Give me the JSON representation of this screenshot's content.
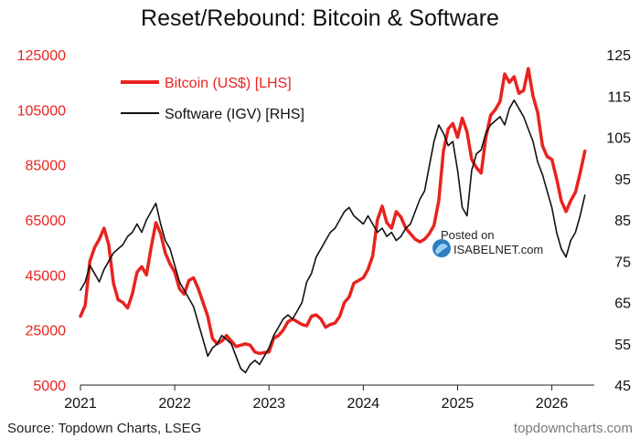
{
  "chart_data": {
    "type": "line",
    "title": "Reset/Rebound: Bitcoin & Software",
    "x_ticks": [
      "2021",
      "2022",
      "2023",
      "2024",
      "2025",
      "2026"
    ],
    "x_range": [
      2021.0,
      2026.45
    ],
    "y_left": {
      "ylim": [
        5000,
        125000
      ],
      "ticks": [
        "5000",
        "25000",
        "45000",
        "65000",
        "85000",
        "105000",
        "125000"
      ]
    },
    "y_right": {
      "ylim": [
        45,
        125
      ],
      "ticks": [
        "45",
        "55",
        "65",
        "75",
        "85",
        "95",
        "105",
        "115",
        "125"
      ]
    },
    "legend_position": "top-left",
    "grid": false,
    "series": [
      {
        "name": "Bitcoin (US$) [LHS]",
        "axis": "left",
        "color": "#e8231f",
        "x": [
          2021.0,
          2021.05,
          2021.1,
          2021.15,
          2021.2,
          2021.25,
          2021.3,
          2021.35,
          2021.4,
          2021.45,
          2021.5,
          2021.55,
          2021.6,
          2021.65,
          2021.7,
          2021.75,
          2021.8,
          2021.85,
          2021.9,
          2021.95,
          2022.0,
          2022.05,
          2022.1,
          2022.15,
          2022.2,
          2022.25,
          2022.3,
          2022.35,
          2022.4,
          2022.45,
          2022.5,
          2022.55,
          2022.6,
          2022.65,
          2022.7,
          2022.75,
          2022.8,
          2022.85,
          2022.9,
          2022.95,
          2023.0,
          2023.05,
          2023.1,
          2023.15,
          2023.2,
          2023.25,
          2023.3,
          2023.35,
          2023.4,
          2023.45,
          2023.5,
          2023.55,
          2023.6,
          2023.65,
          2023.7,
          2023.75,
          2023.8,
          2023.85,
          2023.9,
          2023.95,
          2024.0,
          2024.05,
          2024.1,
          2024.15,
          2024.2,
          2024.25,
          2024.3,
          2024.35,
          2024.4,
          2024.45,
          2024.5,
          2024.55,
          2024.6,
          2024.65,
          2024.7,
          2024.75,
          2024.8,
          2024.85,
          2024.9,
          2024.95,
          2025.0,
          2025.05,
          2025.1,
          2025.15,
          2025.2,
          2025.25,
          2025.3,
          2025.35,
          2025.4,
          2025.45,
          2025.5,
          2025.55,
          2025.6,
          2025.65,
          2025.7,
          2025.75,
          2025.8,
          2025.85,
          2025.9,
          2025.95,
          2026.0,
          2026.05,
          2026.1,
          2026.15,
          2026.2,
          2026.25,
          2026.3,
          2026.35
        ],
        "values": [
          30000,
          34000,
          50000,
          55000,
          58000,
          62000,
          56000,
          42000,
          36000,
          35000,
          33000,
          38000,
          46000,
          48000,
          45000,
          55000,
          64000,
          60000,
          53000,
          49000,
          46000,
          40000,
          38000,
          43000,
          44000,
          40000,
          35000,
          30000,
          22000,
          20000,
          21000,
          23000,
          21000,
          19000,
          19500,
          20000,
          19500,
          17000,
          16500,
          16800,
          17000,
          22000,
          23000,
          25000,
          28000,
          29000,
          28000,
          27000,
          26500,
          30000,
          30500,
          29000,
          26000,
          27000,
          27500,
          30000,
          35000,
          37000,
          42000,
          43000,
          44000,
          47000,
          52000,
          65000,
          70000,
          64000,
          62000,
          68000,
          66000,
          62000,
          60000,
          58000,
          57000,
          58000,
          60000,
          63000,
          72000,
          90000,
          98000,
          100000,
          95000,
          102000,
          97000,
          87000,
          84000,
          82000,
          95000,
          103000,
          105000,
          108000,
          118000,
          115000,
          117000,
          111000,
          112000,
          120000,
          110000,
          104000,
          92000,
          88000,
          87000,
          80000,
          72000,
          68000,
          72000,
          75000,
          82000,
          90000
        ]
      },
      {
        "name": "Software (IGV) [RHS]",
        "axis": "right",
        "color": "#111111",
        "x": [
          2021.0,
          2021.05,
          2021.1,
          2021.15,
          2021.2,
          2021.25,
          2021.3,
          2021.35,
          2021.4,
          2021.45,
          2021.5,
          2021.55,
          2021.6,
          2021.65,
          2021.7,
          2021.75,
          2021.8,
          2021.85,
          2021.9,
          2021.95,
          2022.0,
          2022.05,
          2022.1,
          2022.15,
          2022.2,
          2022.25,
          2022.3,
          2022.35,
          2022.4,
          2022.45,
          2022.5,
          2022.55,
          2022.6,
          2022.65,
          2022.7,
          2022.75,
          2022.8,
          2022.85,
          2022.9,
          2022.95,
          2023.0,
          2023.05,
          2023.1,
          2023.15,
          2023.2,
          2023.25,
          2023.3,
          2023.35,
          2023.4,
          2023.45,
          2023.5,
          2023.55,
          2023.6,
          2023.65,
          2023.7,
          2023.75,
          2023.8,
          2023.85,
          2023.9,
          2023.95,
          2024.0,
          2024.05,
          2024.1,
          2024.15,
          2024.2,
          2024.25,
          2024.3,
          2024.35,
          2024.4,
          2024.45,
          2024.5,
          2024.55,
          2024.6,
          2024.65,
          2024.7,
          2024.75,
          2024.8,
          2024.85,
          2024.9,
          2024.95,
          2025.0,
          2025.05,
          2025.1,
          2025.15,
          2025.2,
          2025.25,
          2025.3,
          2025.35,
          2025.4,
          2025.45,
          2025.5,
          2025.55,
          2025.6,
          2025.65,
          2025.7,
          2025.75,
          2025.8,
          2025.85,
          2025.9,
          2025.95,
          2026.0,
          2026.05,
          2026.1,
          2026.15,
          2026.2,
          2026.25,
          2026.3,
          2026.35
        ],
        "values": [
          68,
          70,
          74,
          72,
          70,
          73,
          75,
          77,
          78,
          79,
          81,
          82,
          84,
          82,
          85,
          87,
          89,
          84,
          80,
          78,
          74,
          70,
          68,
          66,
          64,
          60,
          56,
          52,
          54,
          55,
          57,
          56,
          55,
          52,
          49,
          48,
          50,
          51,
          50,
          52,
          54,
          57,
          59,
          61,
          62,
          61,
          63,
          65,
          70,
          72,
          76,
          78,
          80,
          82,
          83,
          85,
          87,
          88,
          86,
          85,
          84,
          86,
          84,
          82,
          83,
          81,
          82,
          80,
          81,
          83,
          84,
          87,
          90,
          92,
          98,
          104,
          108,
          106,
          103,
          104,
          97,
          88,
          86,
          97,
          101,
          102,
          106,
          108,
          109,
          110,
          108,
          112,
          114,
          112,
          110,
          107,
          104,
          99,
          96,
          92,
          88,
          82,
          78,
          76,
          80,
          82,
          86,
          91
        ]
      }
    ]
  },
  "footer": {
    "source": "Source: Topdown Charts, LSEG",
    "brand": "topdowncharts.com"
  },
  "watermark": {
    "line1": "Posted on",
    "line2": "ISABELNET.com"
  }
}
